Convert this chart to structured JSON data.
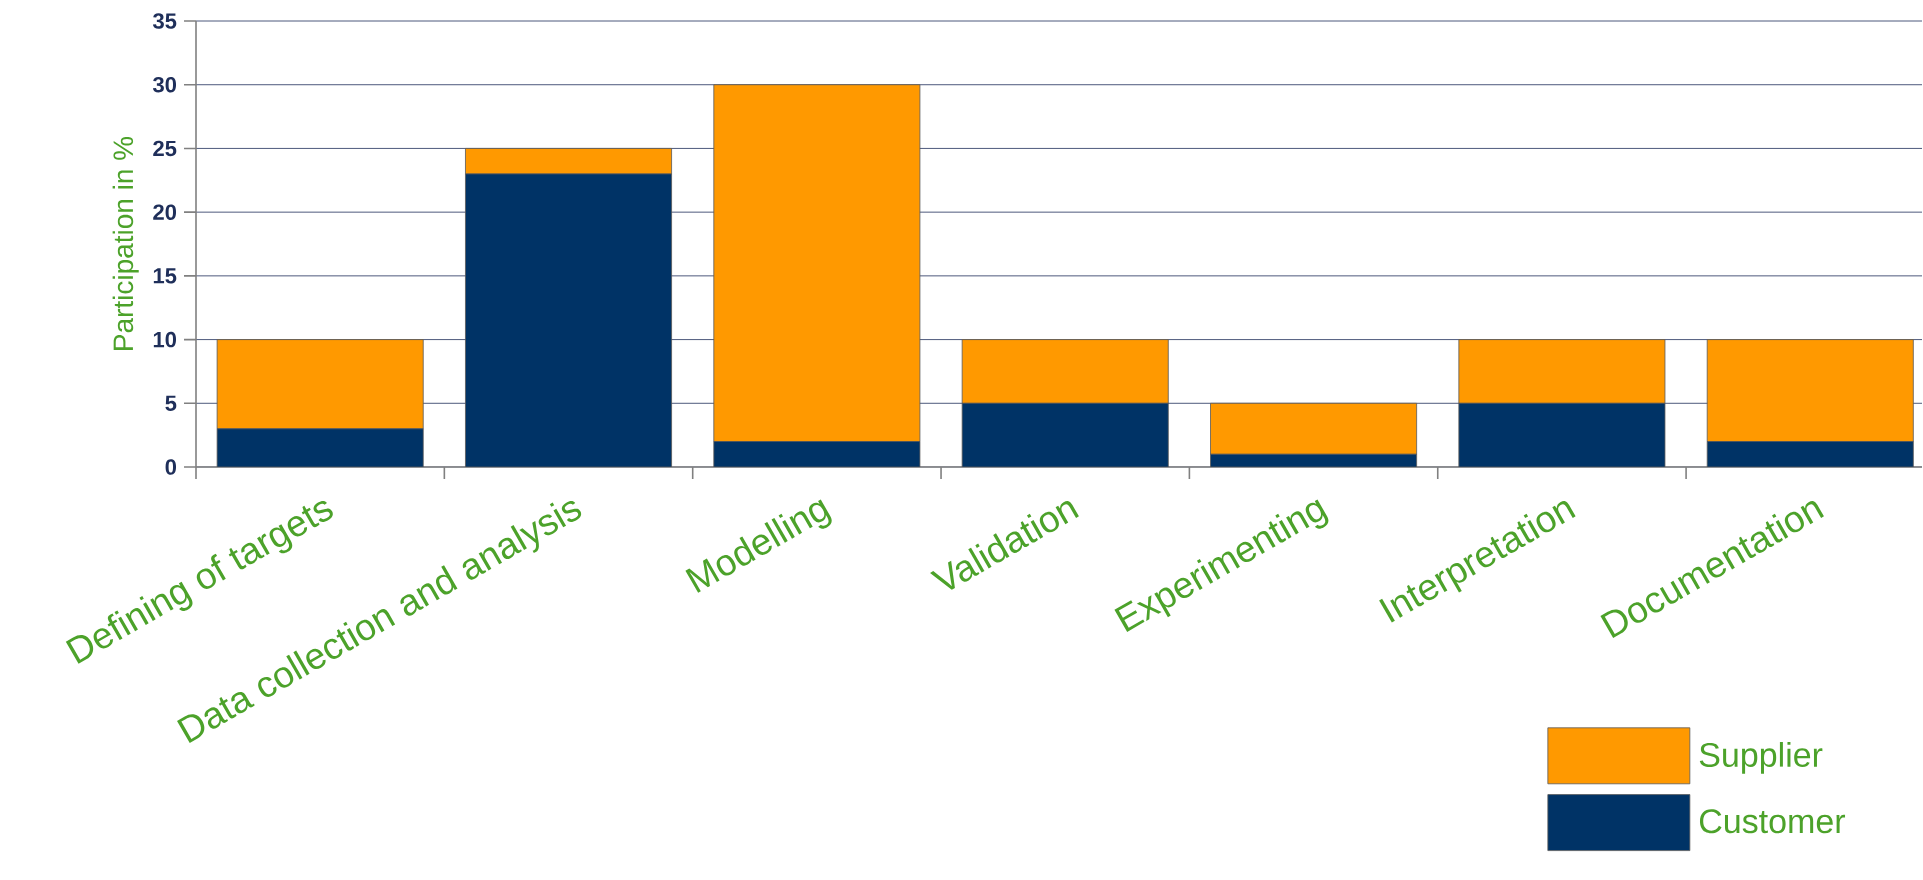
{
  "chart_data": {
    "type": "bar",
    "stacked": true,
    "ylabel": "Participation in %",
    "categories": [
      "Defining of targets",
      "Data collection and analysis",
      "Modelling",
      "Validation",
      "Experimenting",
      "Interpretation",
      "Documentation"
    ],
    "series": [
      {
        "name": "Customer",
        "color": "#003366",
        "values": [
          3,
          23,
          2,
          5,
          1,
          5,
          2
        ]
      },
      {
        "name": "Supplier",
        "color": "#ff9900",
        "values": [
          7,
          2,
          28,
          5,
          4,
          5,
          8
        ]
      }
    ],
    "ylim": [
      0,
      35
    ],
    "yticks": [
      0,
      5,
      10,
      15,
      20,
      25,
      30,
      35
    ],
    "grid": "y",
    "legend": "bottom right"
  }
}
